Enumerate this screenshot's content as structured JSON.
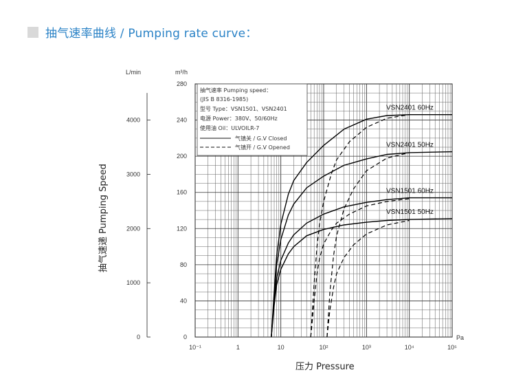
{
  "header": {
    "title": "抽气速率曲线 / Pumping rate curve："
  },
  "chart_data": {
    "type": "line",
    "x_scale": "log",
    "x_unit": "Pa",
    "xlim": [
      0.1,
      100000
    ],
    "x_ticks": [
      {
        "value": 0.1,
        "label": "10⁻¹"
      },
      {
        "value": 1,
        "label": "1"
      },
      {
        "value": 10,
        "label": "10"
      },
      {
        "value": 100,
        "label": "10²"
      },
      {
        "value": 1000,
        "label": "10³"
      },
      {
        "value": 10000,
        "label": "10⁴"
      },
      {
        "value": 100000,
        "label": "10⁵"
      }
    ],
    "xlabel": "压力 Pressure",
    "ylabel": "抽气速递 Pumping Speed",
    "y_unit_right": "m³/h",
    "y_unit_left": "L/min",
    "ylim": [
      0,
      280
    ],
    "y_ticks": [
      "0",
      "40",
      "80",
      "120",
      "160",
      "200",
      "240",
      "280"
    ],
    "y2_ticks": [
      "0",
      "1000",
      "2000",
      "3000",
      "4000"
    ],
    "grid": true,
    "legend": {
      "lines": [
        "抽气速率 Pumping speed：",
        "(JIS B 8316-1985)",
        "型号 Type：VSN1501、VSN2401",
        "电源 Power：380V、50/60Hz",
        "使用油 Oil：ULVOILR-7"
      ],
      "closed_label": "气镇关 / G.V Closed",
      "opened_label": "气镇开 / G.V Opened",
      "placement": "top-left"
    },
    "series": [
      {
        "name": "VSN2401 60Hz",
        "color": "#000000",
        "closed": [
          [
            6,
            0
          ],
          [
            7,
            50
          ],
          [
            8,
            90
          ],
          [
            10,
            125
          ],
          [
            15,
            158
          ],
          [
            20,
            173
          ],
          [
            40,
            193
          ],
          [
            100,
            212
          ],
          [
            300,
            230
          ],
          [
            1000,
            241
          ],
          [
            3000,
            245
          ],
          [
            10000,
            246
          ],
          [
            100000,
            246
          ]
        ],
        "opened": [
          [
            50,
            0
          ],
          [
            60,
            60
          ],
          [
            70,
            100
          ],
          [
            80,
            125
          ],
          [
            100,
            150
          ],
          [
            150,
            180
          ],
          [
            200,
            196
          ],
          [
            400,
            216
          ],
          [
            1000,
            232
          ],
          [
            3000,
            242
          ],
          [
            10000,
            246
          ]
        ]
      },
      {
        "name": "VSN2401 50Hz",
        "color": "#000000",
        "closed": [
          [
            6,
            0
          ],
          [
            7,
            45
          ],
          [
            8,
            80
          ],
          [
            10,
            108
          ],
          [
            15,
            135
          ],
          [
            20,
            147
          ],
          [
            40,
            165
          ],
          [
            100,
            178
          ],
          [
            300,
            190
          ],
          [
            1000,
            197
          ],
          [
            3000,
            202
          ],
          [
            10000,
            204
          ],
          [
            100000,
            205
          ]
        ],
        "opened": [
          [
            120,
            0
          ],
          [
            140,
            50
          ],
          [
            170,
            90
          ],
          [
            200,
            112
          ],
          [
            300,
            142
          ],
          [
            500,
            164
          ],
          [
            1000,
            184
          ],
          [
            3000,
            198
          ],
          [
            10000,
            204
          ]
        ]
      },
      {
        "name": "VSN1501 60Hz",
        "color": "#000000",
        "closed": [
          [
            6,
            0
          ],
          [
            7,
            40
          ],
          [
            8,
            65
          ],
          [
            10,
            85
          ],
          [
            15,
            104
          ],
          [
            20,
            113
          ],
          [
            40,
            126
          ],
          [
            100,
            136
          ],
          [
            300,
            144
          ],
          [
            1000,
            149
          ],
          [
            3000,
            152
          ],
          [
            10000,
            154
          ],
          [
            100000,
            154
          ]
        ],
        "opened": [
          [
            50,
            0
          ],
          [
            60,
            40
          ],
          [
            70,
            70
          ],
          [
            80,
            87
          ],
          [
            100,
            103
          ],
          [
            150,
            118
          ],
          [
            200,
            126
          ],
          [
            400,
            136
          ],
          [
            1000,
            145
          ],
          [
            3000,
            150
          ],
          [
            10000,
            153
          ]
        ]
      },
      {
        "name": "VSN1501 50Hz",
        "color": "#000000",
        "closed": [
          [
            6,
            0
          ],
          [
            7,
            35
          ],
          [
            8,
            58
          ],
          [
            10,
            75
          ],
          [
            15,
            92
          ],
          [
            20,
            100
          ],
          [
            40,
            112
          ],
          [
            100,
            119
          ],
          [
            300,
            124
          ],
          [
            1000,
            127
          ],
          [
            3000,
            129
          ],
          [
            10000,
            130
          ],
          [
            100000,
            131
          ]
        ],
        "opened": [
          [
            120,
            0
          ],
          [
            140,
            30
          ],
          [
            170,
            55
          ],
          [
            200,
            70
          ],
          [
            300,
            88
          ],
          [
            500,
            102
          ],
          [
            1000,
            114
          ],
          [
            3000,
            124
          ],
          [
            10000,
            129
          ]
        ]
      }
    ]
  }
}
